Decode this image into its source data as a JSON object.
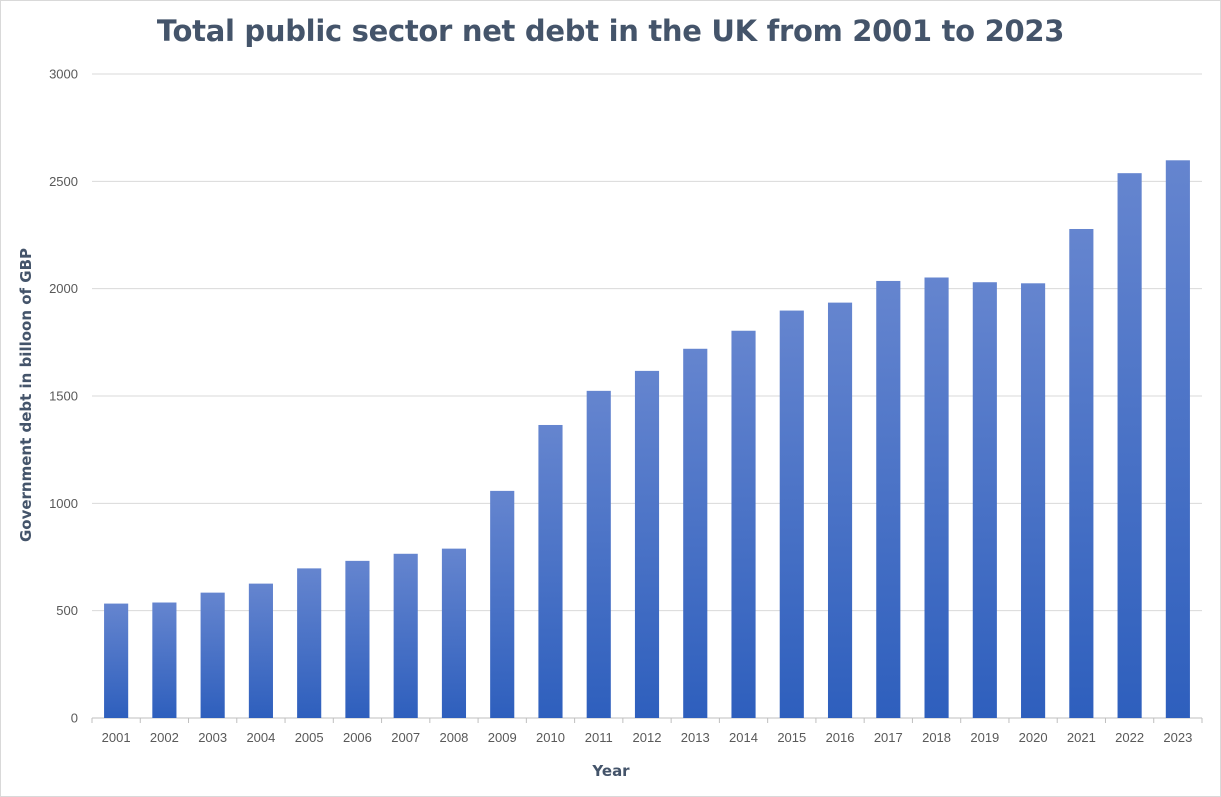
{
  "chart_data": {
    "type": "bar",
    "title": "Total public sector net debt in the UK from 2001 to 2023",
    "xlabel": "Year",
    "ylabel": "Government debt in billoon of GBP",
    "ylim": [
      0,
      3000
    ],
    "yticks": [
      0,
      500,
      1000,
      1500,
      2000,
      2500,
      3000
    ],
    "grid": true,
    "legend": "none",
    "bar_color_top": "#6585cf",
    "bar_color_bottom": "#2e5fbd",
    "categories": [
      "2001",
      "2002",
      "2003",
      "2004",
      "2005",
      "2006",
      "2007",
      "2008",
      "2009",
      "2010",
      "2011",
      "2012",
      "2013",
      "2014",
      "2015",
      "2016",
      "2017",
      "2018",
      "2019",
      "2020",
      "2021",
      "2022",
      "2023"
    ],
    "values": [
      533,
      538,
      584,
      626,
      697,
      732,
      765,
      789,
      1058,
      1365,
      1524,
      1617,
      1720,
      1804,
      1898,
      1935,
      2036,
      2052,
      2030,
      2025,
      2278,
      2538,
      2598
    ]
  }
}
